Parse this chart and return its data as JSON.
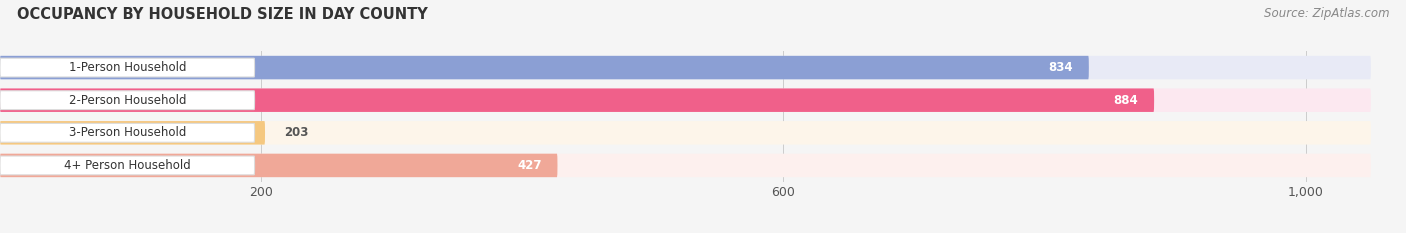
{
  "title": "OCCUPANCY BY HOUSEHOLD SIZE IN DAY COUNTY",
  "source": "Source: ZipAtlas.com",
  "categories": [
    "1-Person Household",
    "2-Person Household",
    "3-Person Household",
    "4+ Person Household"
  ],
  "values": [
    834,
    884,
    203,
    427
  ],
  "bar_colors": [
    "#8b9fd4",
    "#f0608a",
    "#f5c880",
    "#f0a898"
  ],
  "bar_bg_colors": [
    "#e8eaf6",
    "#fce8f0",
    "#fdf5ea",
    "#fdf0ee"
  ],
  "xlim": [
    0,
    1050
  ],
  "xticks": [
    200,
    600,
    1000
  ],
  "xtick_labels": [
    "200",
    "600",
    "1,000"
  ],
  "title_fontsize": 10.5,
  "source_fontsize": 8.5,
  "label_fontsize": 8.5,
  "value_fontsize": 8.5,
  "figsize": [
    14.06,
    2.33
  ],
  "dpi": 100,
  "bg_color": "#f5f5f5"
}
